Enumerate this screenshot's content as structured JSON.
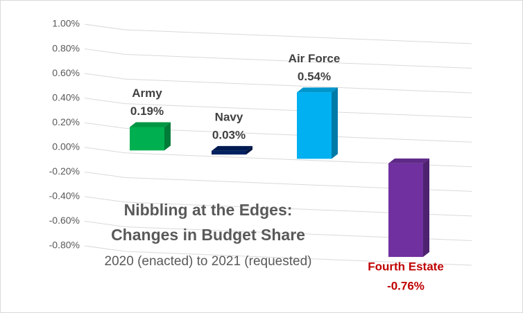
{
  "chart_data": {
    "type": "bar3d",
    "title": [
      "Nibbling at the Edges:",
      "Changes in Budget Share"
    ],
    "subtitle": "2020 (enacted) to 2021 (requested)",
    "categories": [
      "Army",
      "Navy",
      "Air Force",
      "Fourth Estate"
    ],
    "values": [
      0.19,
      0.03,
      0.54,
      -0.76
    ],
    "value_labels": [
      "0.19%",
      "0.03%",
      "0.54%",
      "-0.76%"
    ],
    "colors": [
      "#00b050",
      "#002060",
      "#00b0f0",
      "#7030a0"
    ],
    "label_colors": [
      "#404040",
      "#404040",
      "#404040",
      "#c00000"
    ],
    "ylim": [
      -0.8,
      1.0
    ],
    "yticks": [
      {
        "value": -0.8,
        "label": "-0.80%"
      },
      {
        "value": -0.6,
        "label": "-0.60%"
      },
      {
        "value": -0.4,
        "label": "-0.40%"
      },
      {
        "value": -0.2,
        "label": "-0.20%"
      },
      {
        "value": 0,
        "label": "0.00%"
      },
      {
        "value": 0.2,
        "label": "0.20%"
      },
      {
        "value": 0.4,
        "label": "0.40%"
      },
      {
        "value": 0.6,
        "label": "0.60%"
      },
      {
        "value": 0.8,
        "label": "0.80%"
      },
      {
        "value": 1.0,
        "label": "1.00%"
      }
    ],
    "grid": true
  }
}
